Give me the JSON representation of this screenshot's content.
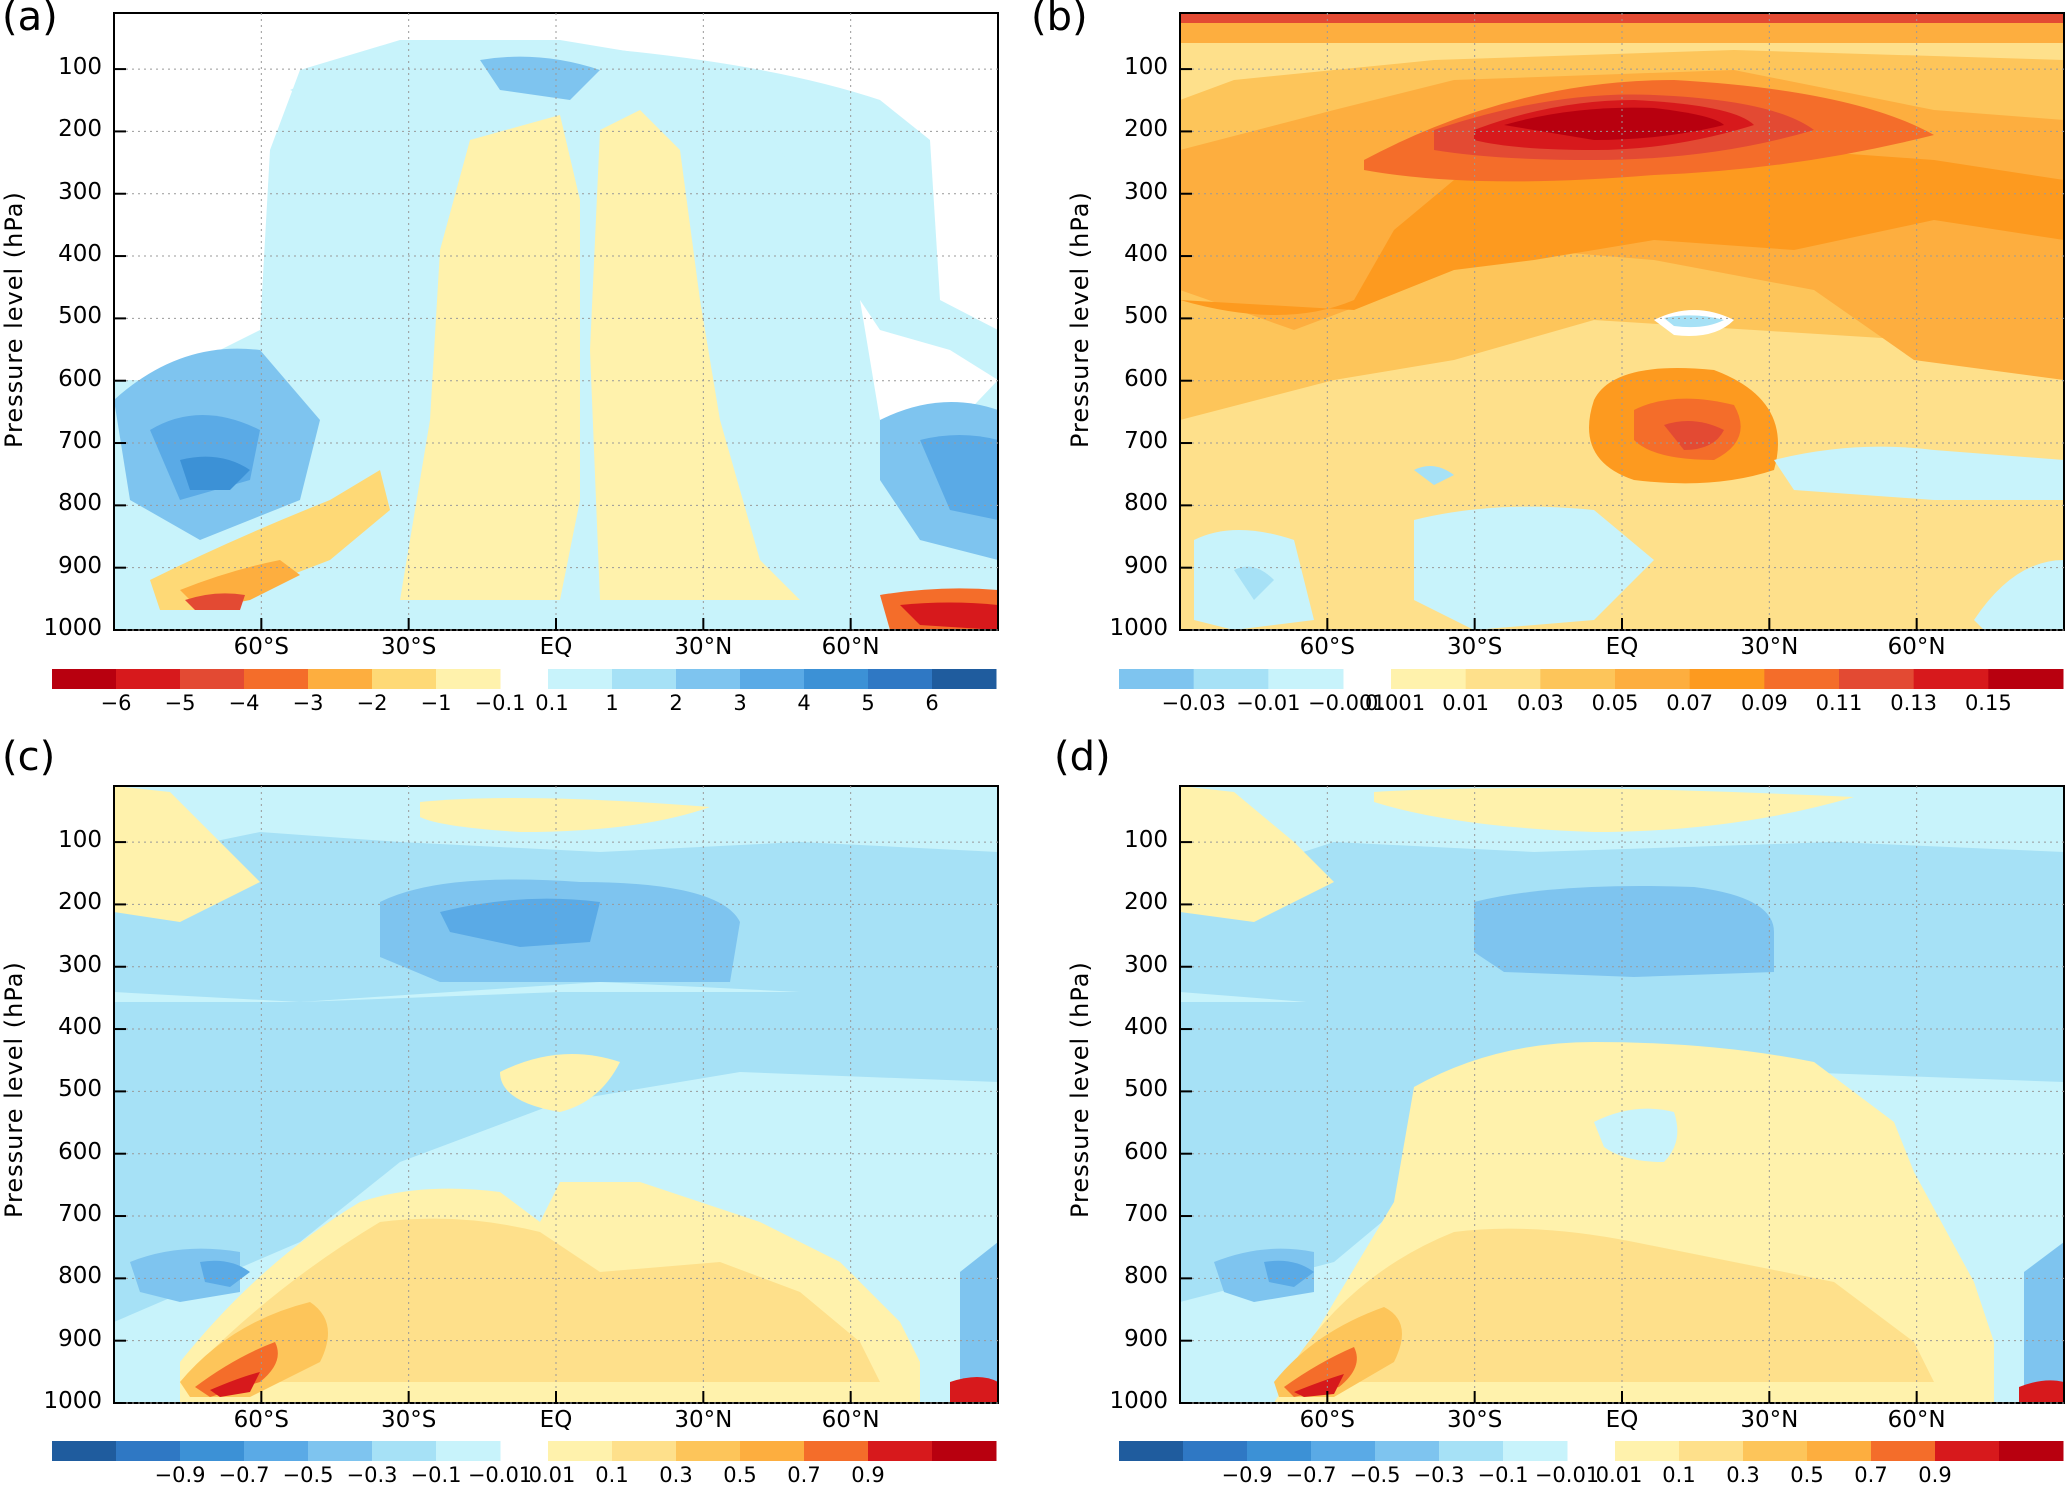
{
  "panels": [
    {
      "label": "(a)",
      "ylabel": "Pressure level (hPa)",
      "neg_colors": [
        "#b8000f",
        "#d7191c",
        "#e34a33",
        "#f46d2a",
        "#fdae3f",
        "#fed976",
        "#fff2ac"
      ],
      "pos_colors": [
        "#c8f3fb",
        "#a6e1f6",
        "#7ec4ef",
        "#5aaae6",
        "#3c91d6",
        "#2f78c4",
        "#1f5c9e"
      ],
      "neg_labels": [
        "−6",
        "−5",
        "−4",
        "−3",
        "−2",
        "−1",
        "−0.1"
      ],
      "pos_labels": [
        "0.1",
        "1",
        "2",
        "3",
        "4",
        "5",
        "6"
      ]
    },
    {
      "label": "(b)",
      "ylabel": "Pressure level (hPa)",
      "neg_colors": [
        "#7ec4ef",
        "#a6e1f6",
        "#c8f3fb"
      ],
      "pos_colors": [
        "#fff2ac",
        "#fee08b",
        "#fdc55a",
        "#fdae3f",
        "#fd9a1f",
        "#f46d2a",
        "#e34a33",
        "#d7191c",
        "#b8000f"
      ],
      "neg_labels": [
        "−0.03",
        "−0.01",
        "−0.001"
      ],
      "pos_labels": [
        "0.001",
        "0.01",
        "0.03",
        "0.05",
        "0.07",
        "0.09",
        "0.11",
        "0.13",
        "0.15"
      ]
    },
    {
      "label": "(c)",
      "ylabel": "Pressure level (hPa)",
      "neg_colors": [
        "#1f5c9e",
        "#2f78c4",
        "#3c91d6",
        "#5aaae6",
        "#7ec4ef",
        "#a6e1f6",
        "#c8f3fb"
      ],
      "pos_colors": [
        "#fff2ac",
        "#fee08b",
        "#fdc55a",
        "#fdae3f",
        "#f46d2a",
        "#d7191c",
        "#b8000f"
      ],
      "neg_labels": [
        "−0.9",
        "−0.7",
        "−0.5",
        "−0.3",
        "−0.1",
        "−0.01"
      ],
      "pos_labels": [
        "0.01",
        "0.1",
        "0.3",
        "0.5",
        "0.7",
        "0.9"
      ]
    },
    {
      "label": "(d)",
      "ylabel": "Pressure level (hPa)",
      "neg_colors": [
        "#1f5c9e",
        "#2f78c4",
        "#3c91d6",
        "#5aaae6",
        "#7ec4ef",
        "#a6e1f6",
        "#c8f3fb"
      ],
      "pos_colors": [
        "#fff2ac",
        "#fee08b",
        "#fdc55a",
        "#fdae3f",
        "#f46d2a",
        "#d7191c",
        "#b8000f"
      ],
      "neg_labels": [
        "−0.9",
        "−0.7",
        "−0.5",
        "−0.3",
        "−0.1",
        "−0.01"
      ],
      "pos_labels": [
        "0.01",
        "0.1",
        "0.3",
        "0.5",
        "0.7",
        "0.9"
      ]
    }
  ],
  "chart_data": [
    {
      "type": "heatmap",
      "panel": "(a)",
      "ylabel": "Pressure level (hPa)",
      "y_ticks": [
        100,
        200,
        300,
        400,
        500,
        600,
        700,
        800,
        900,
        1000
      ],
      "x_ticks": [
        "60°S",
        "30°S",
        "EQ",
        "30°N",
        "60°N"
      ],
      "x_range": [
        -90,
        90
      ],
      "y_range": [
        1000,
        10
      ],
      "colorbar_levels": [
        -6,
        -5,
        -4,
        -3,
        -2,
        -1,
        -0.1,
        0.1,
        1,
        2,
        3,
        4,
        5,
        6
      ],
      "features": [
        {
          "kind": "min",
          "lat": -60,
          "p": 950,
          "value": -5
        },
        {
          "kind": "max",
          "lat": -65,
          "p": 780,
          "value": 3
        },
        {
          "kind": "max",
          "lat": 85,
          "p": 780,
          "value": 4
        },
        {
          "kind": "max",
          "lat": 5,
          "p": 100,
          "value": 2
        }
      ]
    },
    {
      "type": "heatmap",
      "panel": "(b)",
      "ylabel": "Pressure level (hPa)",
      "y_ticks": [
        100,
        200,
        300,
        400,
        500,
        600,
        700,
        800,
        900,
        1000
      ],
      "x_ticks": [
        "60°S",
        "30°S",
        "EQ",
        "30°N",
        "60°N"
      ],
      "x_range": [
        -90,
        90
      ],
      "y_range": [
        1000,
        10
      ],
      "colorbar_levels": [
        -0.03,
        -0.01,
        -0.001,
        0.001,
        0.01,
        0.03,
        0.05,
        0.07,
        0.09,
        0.11,
        0.13,
        0.15
      ],
      "features": [
        {
          "kind": "max",
          "lat": 3,
          "p": 190,
          "value": 0.15
        },
        {
          "kind": "max",
          "lat": 0,
          "p": 700,
          "value": 0.11
        },
        {
          "kind": "min",
          "lat": -60,
          "p": 900,
          "value": -0.03
        }
      ]
    },
    {
      "type": "heatmap",
      "panel": "(c)",
      "ylabel": "Pressure level (hPa)",
      "y_ticks": [
        100,
        200,
        300,
        400,
        500,
        600,
        700,
        800,
        900,
        1000
      ],
      "x_ticks": [
        "60°S",
        "30°S",
        "EQ",
        "30°N",
        "60°N"
      ],
      "x_range": [
        -90,
        90
      ],
      "y_range": [
        1000,
        10
      ],
      "colorbar_levels": [
        -0.9,
        -0.7,
        -0.5,
        -0.3,
        -0.1,
        -0.01,
        0.01,
        0.1,
        0.3,
        0.5,
        0.7,
        0.9
      ],
      "features": [
        {
          "kind": "max",
          "lat": -60,
          "p": 950,
          "value": 0.9
        },
        {
          "kind": "min",
          "lat": -10,
          "p": 200,
          "value": -0.5
        },
        {
          "kind": "min",
          "lat": -65,
          "p": 780,
          "value": -0.5
        }
      ]
    },
    {
      "type": "heatmap",
      "panel": "(d)",
      "ylabel": "Pressure level (hPa)",
      "y_ticks": [
        100,
        200,
        300,
        400,
        500,
        600,
        700,
        800,
        900,
        1000
      ],
      "x_ticks": [
        "60°S",
        "30°S",
        "EQ",
        "30°N",
        "60°N"
      ],
      "x_range": [
        -90,
        90
      ],
      "y_range": [
        1000,
        10
      ],
      "colorbar_levels": [
        -0.9,
        -0.7,
        -0.5,
        -0.3,
        -0.1,
        -0.01,
        0.01,
        0.1,
        0.3,
        0.5,
        0.7,
        0.9
      ],
      "features": [
        {
          "kind": "max",
          "lat": -60,
          "p": 950,
          "value": 0.9
        },
        {
          "kind": "min",
          "lat": 5,
          "p": 220,
          "value": -0.3
        },
        {
          "kind": "min",
          "lat": -65,
          "p": 780,
          "value": -0.5
        }
      ]
    }
  ]
}
